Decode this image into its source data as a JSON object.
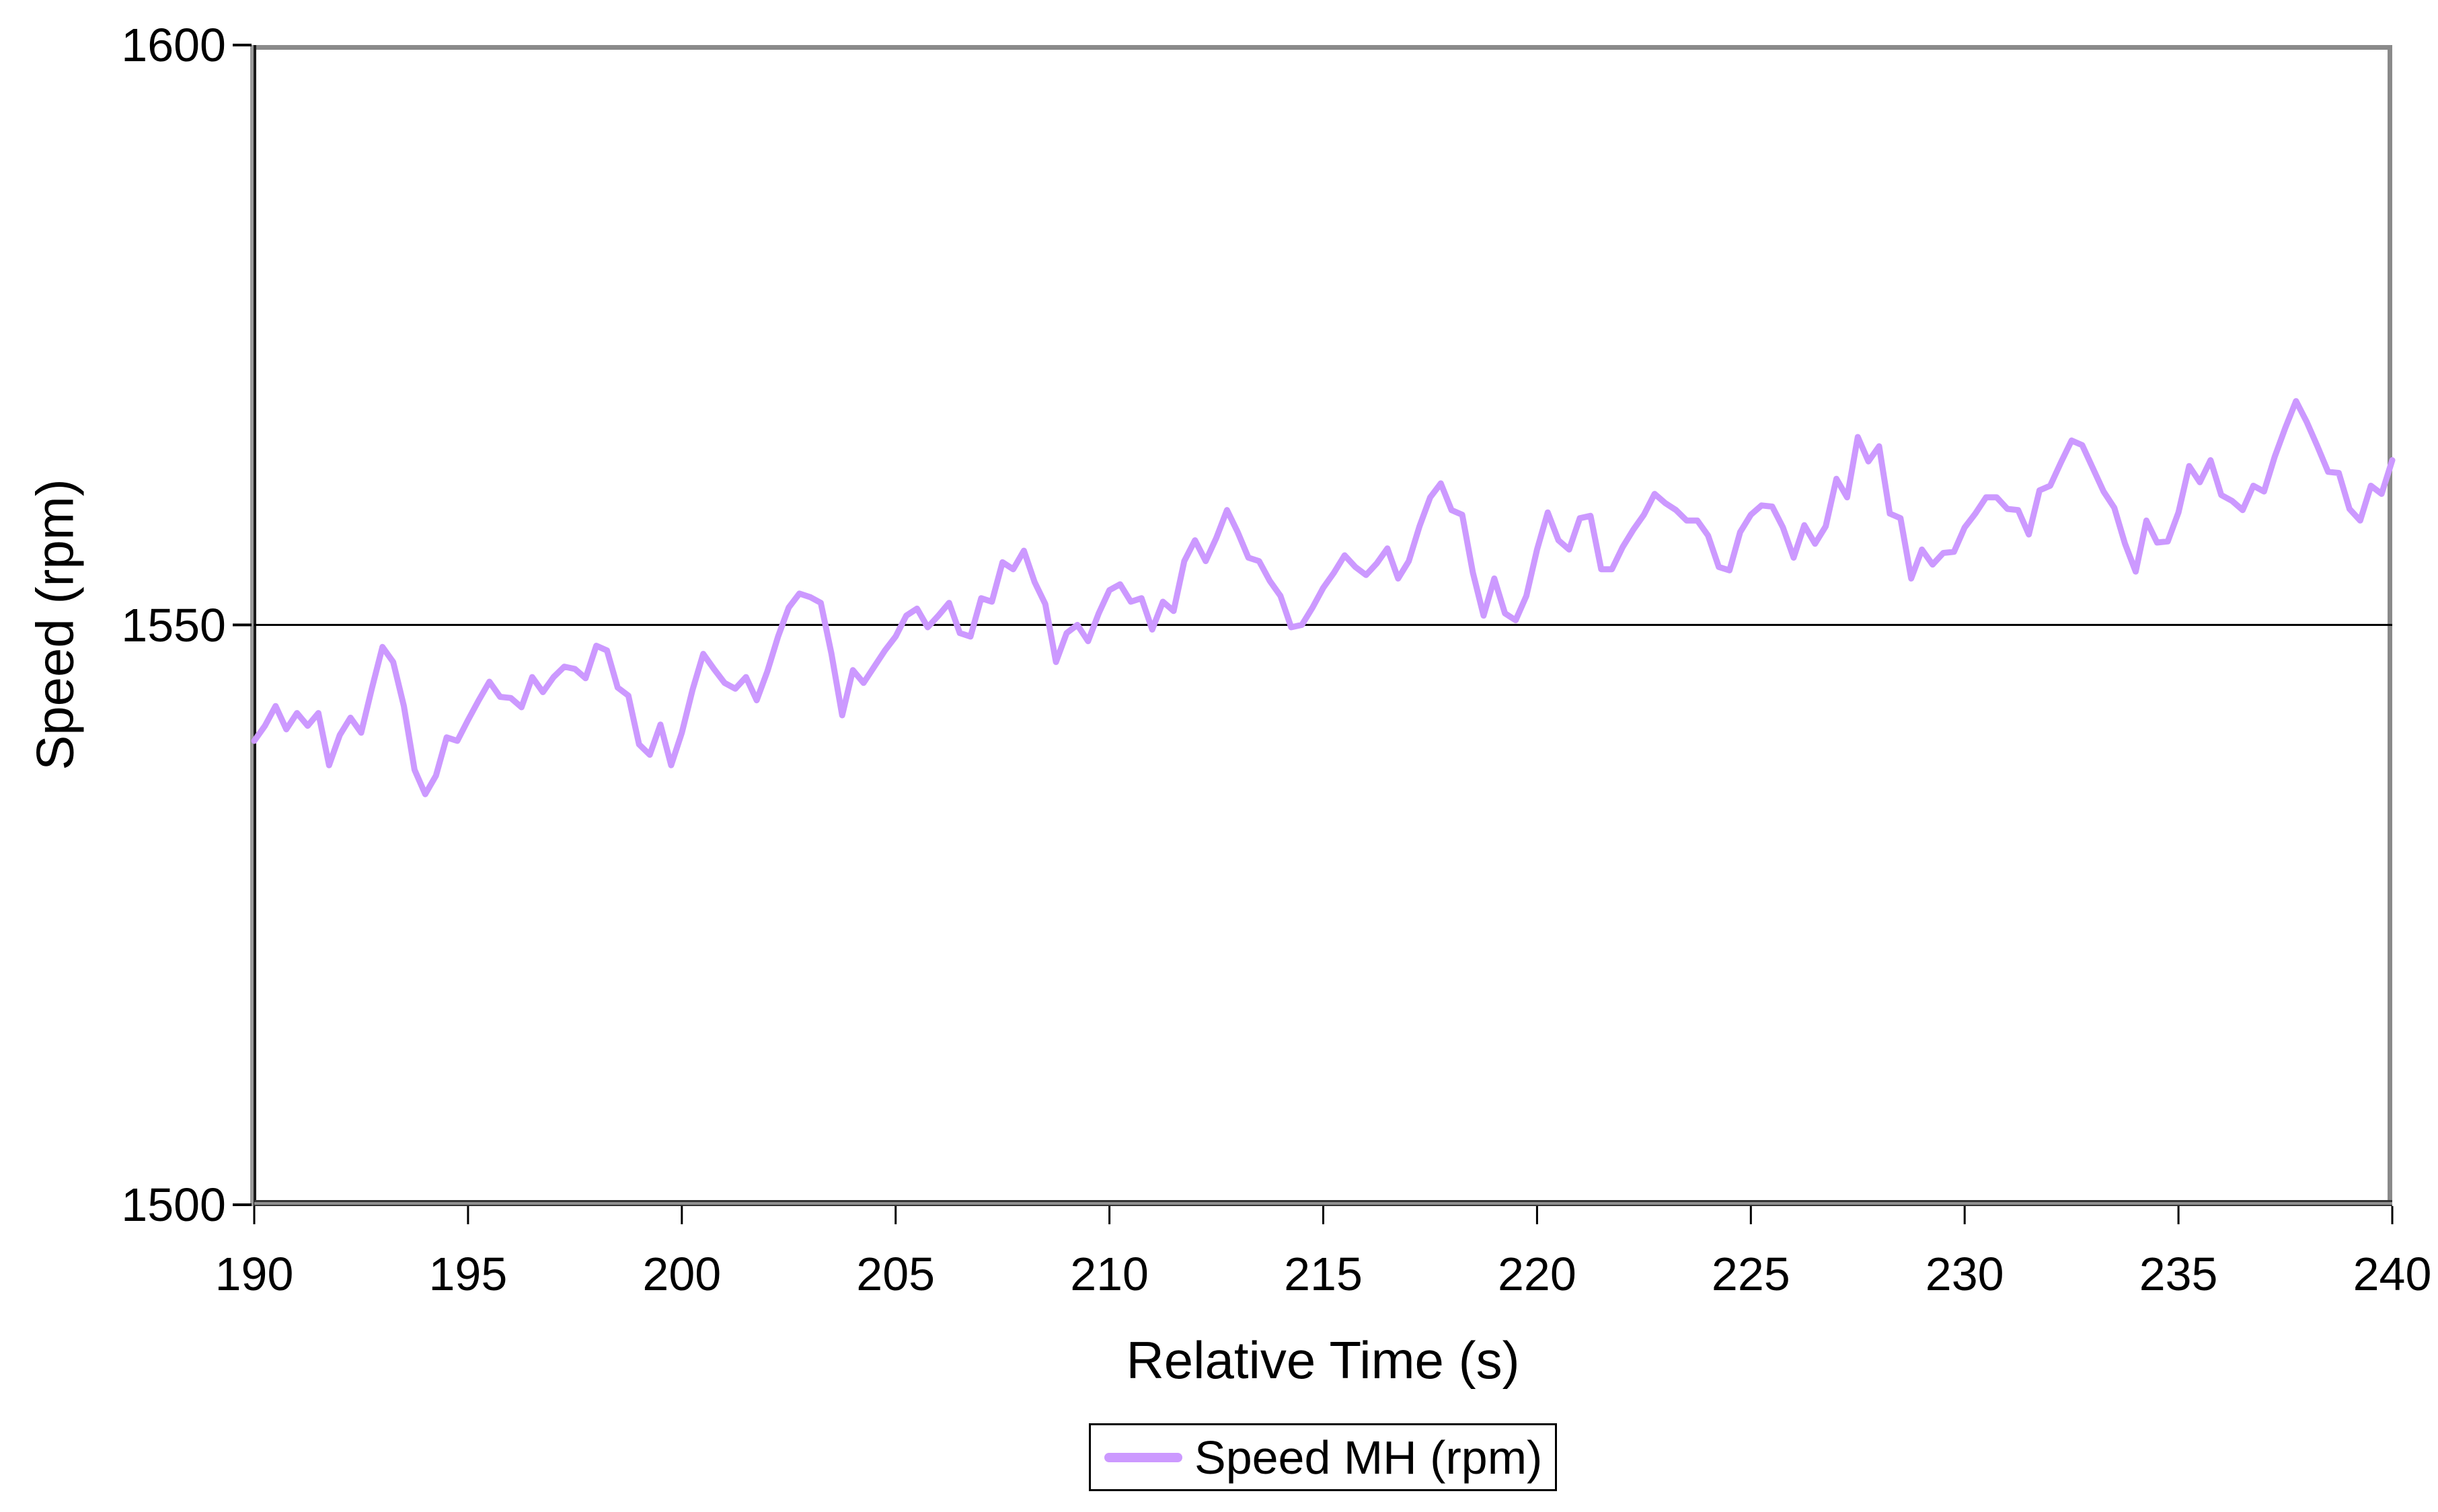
{
  "chart_data": {
    "type": "line",
    "title": "",
    "xlabel": "Relative Time (s)",
    "ylabel": "Speed (rpm)",
    "xlim": [
      190,
      240
    ],
    "ylim": [
      1500,
      1600
    ],
    "x_ticks": [
      190,
      195,
      200,
      205,
      210,
      215,
      220,
      225,
      230,
      235,
      240
    ],
    "y_ticks": [
      1500,
      1550,
      1600
    ],
    "y_gridlines": [
      1550
    ],
    "grid": "horizontal-only",
    "legend": {
      "position": "bottom-center",
      "entries": [
        {
          "label": "Speed MH (rpm)",
          "color": "#CC99FF"
        }
      ]
    },
    "series": [
      {
        "name": "Speed MH (rpm)",
        "color": "#CC99FF",
        "x_start": 190,
        "x_step": 0.25,
        "values": [
          1540.0,
          1541.3,
          1543.0,
          1541.0,
          1542.4,
          1541.3,
          1542.4,
          1537.9,
          1540.5,
          1542.0,
          1540.7,
          1544.5,
          1548.1,
          1546.8,
          1543.0,
          1537.5,
          1535.4,
          1537.0,
          1540.3,
          1540.0,
          1541.8,
          1543.5,
          1545.1,
          1543.8,
          1543.7,
          1542.9,
          1545.5,
          1544.2,
          1545.5,
          1546.4,
          1546.2,
          1545.4,
          1548.2,
          1547.8,
          1544.6,
          1543.9,
          1539.7,
          1538.8,
          1541.4,
          1537.9,
          1540.7,
          1544.4,
          1547.5,
          1546.2,
          1545.0,
          1544.5,
          1545.5,
          1543.5,
          1546.0,
          1549.0,
          1551.5,
          1552.7,
          1552.4,
          1551.9,
          1547.5,
          1542.2,
          1546.1,
          1545.0,
          1546.4,
          1547.8,
          1549.0,
          1550.8,
          1551.4,
          1549.8,
          1550.8,
          1551.9,
          1549.3,
          1549.0,
          1552.3,
          1552.0,
          1555.4,
          1554.8,
          1556.4,
          1553.7,
          1551.8,
          1546.8,
          1549.3,
          1550.0,
          1548.6,
          1551.0,
          1553.0,
          1553.5,
          1552.0,
          1552.3,
          1549.6,
          1552.0,
          1551.2,
          1555.5,
          1557.3,
          1555.5,
          1557.5,
          1559.9,
          1558.0,
          1555.8,
          1555.5,
          1553.8,
          1552.5,
          1549.8,
          1550.0,
          1551.5,
          1553.2,
          1554.5,
          1556.0,
          1555.0,
          1554.3,
          1555.3,
          1556.6,
          1554.0,
          1555.5,
          1558.5,
          1561.0,
          1562.2,
          1559.9,
          1559.5,
          1554.5,
          1550.8,
          1554.0,
          1551.0,
          1550.4,
          1552.5,
          1556.5,
          1559.7,
          1557.3,
          1556.5,
          1559.2,
          1559.4,
          1554.8,
          1554.8,
          1556.7,
          1558.2,
          1559.5,
          1561.3,
          1560.5,
          1559.9,
          1559.0,
          1559.0,
          1557.7,
          1555.0,
          1554.7,
          1558.0,
          1559.5,
          1560.3,
          1560.2,
          1558.4,
          1555.8,
          1558.6,
          1557.0,
          1558.5,
          1562.6,
          1561.0,
          1566.2,
          1564.1,
          1565.4,
          1559.6,
          1559.2,
          1554.0,
          1556.5,
          1555.2,
          1556.2,
          1556.3,
          1558.4,
          1559.6,
          1561.0,
          1561.0,
          1560.0,
          1559.9,
          1557.8,
          1561.6,
          1562.0,
          1564.0,
          1565.9,
          1565.5,
          1563.5,
          1561.5,
          1560.1,
          1557.0,
          1554.6,
          1559.0,
          1557.1,
          1557.2,
          1559.7,
          1563.7,
          1562.3,
          1564.2,
          1561.2,
          1560.7,
          1559.9,
          1562.0,
          1561.5,
          1564.5,
          1567.0,
          1569.3,
          1567.5,
          1565.4,
          1563.2,
          1563.1,
          1560.0,
          1559.0,
          1562.0,
          1561.3,
          1564.2
        ]
      }
    ]
  },
  "colors": {
    "series_line": "#CC99FF",
    "gridline": "#000000",
    "tick": "#000000",
    "axis_dark": "#1a1a1a",
    "plot_border_gray": "#8a8a8a",
    "text": "#000000",
    "background": "#ffffff"
  }
}
